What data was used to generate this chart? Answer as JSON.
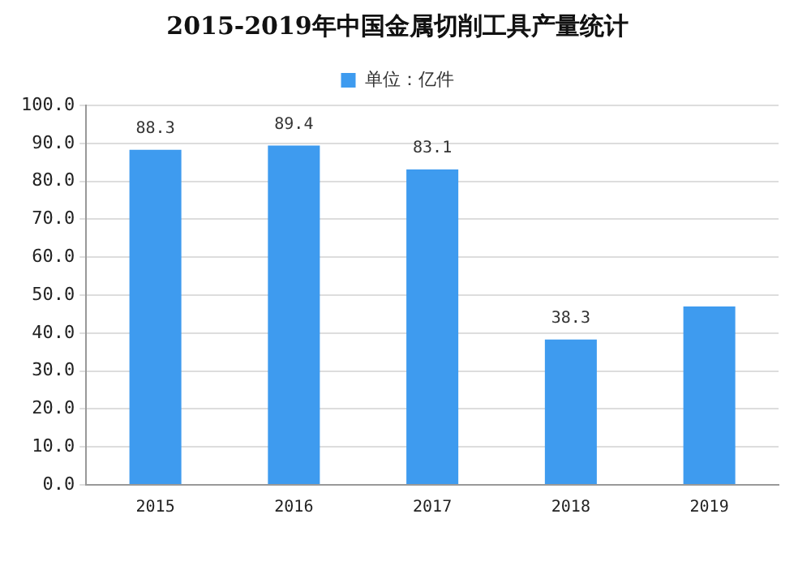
{
  "chart_data": {
    "type": "bar",
    "title": "2015-2019年中国金属切削工具产量统计",
    "categories": [
      "2015",
      "2016",
      "2017",
      "2018",
      "2019"
    ],
    "series": [
      {
        "name": "单位：亿件",
        "color": "#3e9bef",
        "values": [
          88.3,
          89.4,
          83.1,
          38.3,
          47
        ]
      }
    ],
    "value_labels": [
      "88.3",
      "89.4",
      "83.1",
      "38.3",
      null
    ],
    "ylim": [
      0,
      100
    ],
    "yticks": [
      {
        "value": 0,
        "label": "0.0"
      },
      {
        "value": 10,
        "label": "10.0"
      },
      {
        "value": 20,
        "label": "20.0"
      },
      {
        "value": 30,
        "label": "30.0"
      },
      {
        "value": 40,
        "label": "40.0"
      },
      {
        "value": 50,
        "label": "50.0"
      },
      {
        "value": 60,
        "label": "60.0"
      },
      {
        "value": 70,
        "label": "70.0"
      },
      {
        "value": 80,
        "label": "80.0"
      },
      {
        "value": 90,
        "label": "90.0"
      },
      {
        "value": 100,
        "label": "100.0"
      }
    ],
    "grid": "y",
    "legend": "top"
  }
}
